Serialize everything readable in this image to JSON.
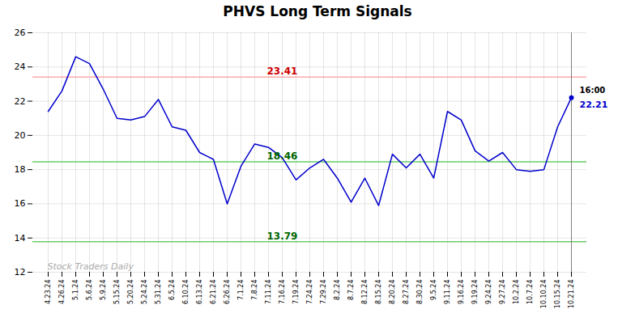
{
  "chart_data": {
    "type": "line",
    "title": "PHVS Long Term Signals",
    "categories": [
      "4.23.24",
      "4.26.24",
      "5.1.24",
      "5.6.24",
      "5.9.24",
      "5.15.24",
      "5.20.24",
      "5.24.24",
      "5.31.24",
      "6.5.24",
      "6.10.24",
      "6.13.24",
      "6.21.24",
      "6.26.24",
      "7.1.24",
      "7.8.24",
      "7.11.24",
      "7.16.24",
      "7.19.24",
      "7.24.24",
      "7.29.24",
      "8.2.24",
      "8.7.24",
      "8.12.24",
      "8.15.24",
      "8.20.24",
      "8.27.24",
      "8.30.24",
      "9.5.24",
      "9.11.24",
      "9.16.24",
      "9.19.24",
      "9.24.24",
      "9.27.24",
      "10.2.24",
      "10.7.24",
      "10.10.24",
      "10.15.24",
      "10.21.24"
    ],
    "values": [
      21.4,
      22.6,
      24.6,
      24.2,
      22.7,
      21.0,
      20.9,
      21.1,
      22.1,
      20.5,
      20.3,
      19.0,
      18.6,
      16.0,
      18.2,
      19.5,
      19.3,
      18.7,
      17.4,
      18.1,
      18.6,
      17.5,
      16.1,
      17.5,
      15.9,
      18.9,
      18.1,
      18.9,
      17.5,
      21.4,
      20.9,
      19.1,
      18.5,
      19.0,
      18.0,
      17.9,
      18.0,
      20.5,
      22.21
    ],
    "color": "#0000cc",
    "ylim": [
      12,
      26
    ],
    "yticks": [
      12,
      14,
      16,
      18,
      20,
      22,
      24,
      26
    ],
    "grid": true,
    "hlines": [
      {
        "value": 23.41,
        "label": "23.41",
        "color": "#ffaaaa",
        "label_color": "#cc0000"
      },
      {
        "value": 18.46,
        "label": "18.46",
        "color": "#66cc66",
        "label_color": "#006600"
      },
      {
        "value": 13.79,
        "label": "13.79",
        "color": "#66cc66",
        "label_color": "#006600"
      }
    ],
    "last_time": "16:00",
    "last_price": 22.21,
    "watermark": "Stock Traders Daily"
  }
}
